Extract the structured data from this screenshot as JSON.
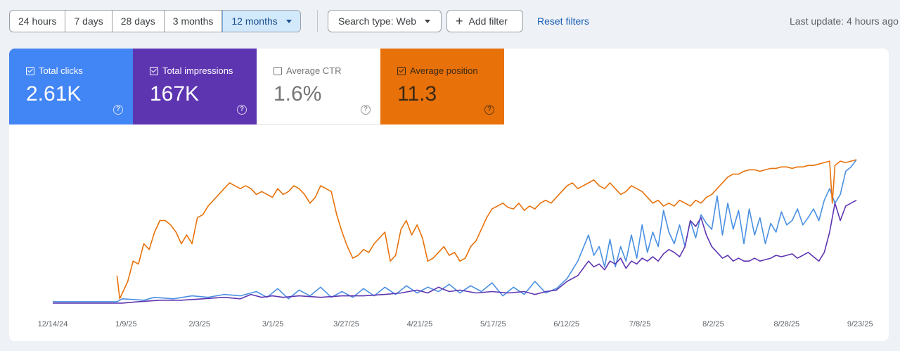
{
  "toolbar": {
    "ranges": [
      "24 hours",
      "7 days",
      "28 days",
      "3 months",
      "12 months"
    ],
    "search_type": "Search type: Web",
    "add_filter": "Add filter",
    "reset": "Reset filters",
    "last_update": "Last update: 4 hours ago"
  },
  "metrics": {
    "clicks": {
      "label": "Total clicks",
      "value": "2.61K"
    },
    "impressions": {
      "label": "Total impressions",
      "value": "167K"
    },
    "ctr": {
      "label": "Average CTR",
      "value": "1.6%"
    },
    "position": {
      "label": "Average position",
      "value": "11.3"
    }
  },
  "colors": {
    "clicks": "#4a90e2",
    "impressions": "#5e35b1",
    "position": "#e8710a"
  },
  "chart_data": {
    "type": "line",
    "x_ticks": [
      "12/14/24",
      "1/9/25",
      "2/3/25",
      "3/1/25",
      "3/27/25",
      "4/21/25",
      "5/17/25",
      "6/12/25",
      "7/8/25",
      "8/2/25",
      "8/28/25",
      "9/23/25"
    ],
    "x_start": "12/14/24",
    "x_end": "10/4/25",
    "grid": false,
    "legend": "none",
    "series": [
      {
        "name": "Total clicks",
        "color": "#4a90e2",
        "points": [
          [
            0,
            0.02
          ],
          [
            24,
            0.02
          ],
          [
            26,
            0.04
          ],
          [
            34,
            0.03
          ],
          [
            38,
            0.05
          ],
          [
            45,
            0.04
          ],
          [
            52,
            0.06
          ],
          [
            58,
            0.05
          ],
          [
            64,
            0.07
          ],
          [
            70,
            0.06
          ],
          [
            76,
            0.09
          ],
          [
            80,
            0.05
          ],
          [
            84,
            0.11
          ],
          [
            88,
            0.04
          ],
          [
            92,
            0.1
          ],
          [
            96,
            0.06
          ],
          [
            100,
            0.12
          ],
          [
            104,
            0.05
          ],
          [
            108,
            0.09
          ],
          [
            112,
            0.05
          ],
          [
            116,
            0.11
          ],
          [
            120,
            0.06
          ],
          [
            124,
            0.12
          ],
          [
            128,
            0.07
          ],
          [
            132,
            0.13
          ],
          [
            136,
            0.08
          ],
          [
            140,
            0.12
          ],
          [
            144,
            0.09
          ],
          [
            148,
            0.14
          ],
          [
            152,
            0.08
          ],
          [
            156,
            0.13
          ],
          [
            160,
            0.09
          ],
          [
            164,
            0.15
          ],
          [
            168,
            0.06
          ],
          [
            172,
            0.12
          ],
          [
            176,
            0.07
          ],
          [
            180,
            0.16
          ],
          [
            184,
            0.08
          ],
          [
            188,
            0.11
          ],
          [
            192,
            0.18
          ],
          [
            196,
            0.3
          ],
          [
            200,
            0.48
          ],
          [
            202,
            0.34
          ],
          [
            204,
            0.4
          ],
          [
            206,
            0.26
          ],
          [
            208,
            0.45
          ],
          [
            210,
            0.26
          ],
          [
            212,
            0.4
          ],
          [
            214,
            0.3
          ],
          [
            216,
            0.48
          ],
          [
            218,
            0.32
          ],
          [
            220,
            0.55
          ],
          [
            222,
            0.36
          ],
          [
            224,
            0.5
          ],
          [
            226,
            0.4
          ],
          [
            228,
            0.65
          ],
          [
            230,
            0.5
          ],
          [
            232,
            0.42
          ],
          [
            234,
            0.55
          ],
          [
            236,
            0.4
          ],
          [
            238,
            0.58
          ],
          [
            240,
            0.46
          ],
          [
            242,
            0.62
          ],
          [
            244,
            0.56
          ],
          [
            246,
            0.52
          ],
          [
            248,
            0.75
          ],
          [
            250,
            0.48
          ],
          [
            252,
            0.7
          ],
          [
            254,
            0.52
          ],
          [
            256,
            0.65
          ],
          [
            258,
            0.42
          ],
          [
            260,
            0.66
          ],
          [
            262,
            0.48
          ],
          [
            264,
            0.6
          ],
          [
            266,
            0.42
          ],
          [
            268,
            0.56
          ],
          [
            270,
            0.5
          ],
          [
            272,
            0.64
          ],
          [
            274,
            0.55
          ],
          [
            276,
            0.58
          ],
          [
            278,
            0.66
          ],
          [
            280,
            0.55
          ],
          [
            282,
            0.6
          ],
          [
            284,
            0.66
          ],
          [
            286,
            0.58
          ],
          [
            288,
            0.72
          ],
          [
            290,
            0.8
          ],
          [
            292,
            0.7
          ],
          [
            294,
            0.76
          ],
          [
            296,
            0.92
          ],
          [
            298,
            0.95
          ],
          [
            300,
            1.0
          ]
        ]
      },
      {
        "name": "Total impressions",
        "color": "#5e35b1",
        "points": [
          [
            0,
            0.01
          ],
          [
            26,
            0.01
          ],
          [
            32,
            0.02
          ],
          [
            40,
            0.03
          ],
          [
            48,
            0.03
          ],
          [
            56,
            0.04
          ],
          [
            64,
            0.05
          ],
          [
            70,
            0.04
          ],
          [
            74,
            0.07
          ],
          [
            78,
            0.05
          ],
          [
            82,
            0.06
          ],
          [
            86,
            0.05
          ],
          [
            92,
            0.06
          ],
          [
            100,
            0.05
          ],
          [
            108,
            0.06
          ],
          [
            116,
            0.06
          ],
          [
            124,
            0.07
          ],
          [
            130,
            0.08
          ],
          [
            136,
            0.1
          ],
          [
            140,
            0.08
          ],
          [
            144,
            0.12
          ],
          [
            148,
            0.09
          ],
          [
            152,
            0.1
          ],
          [
            158,
            0.08
          ],
          [
            164,
            0.09
          ],
          [
            170,
            0.08
          ],
          [
            176,
            0.09
          ],
          [
            180,
            0.07
          ],
          [
            184,
            0.09
          ],
          [
            188,
            0.1
          ],
          [
            192,
            0.16
          ],
          [
            196,
            0.2
          ],
          [
            198,
            0.25
          ],
          [
            200,
            0.3
          ],
          [
            202,
            0.26
          ],
          [
            204,
            0.28
          ],
          [
            206,
            0.24
          ],
          [
            208,
            0.3
          ],
          [
            210,
            0.28
          ],
          [
            212,
            0.32
          ],
          [
            214,
            0.25
          ],
          [
            216,
            0.3
          ],
          [
            218,
            0.28
          ],
          [
            220,
            0.32
          ],
          [
            222,
            0.3
          ],
          [
            224,
            0.33
          ],
          [
            226,
            0.3
          ],
          [
            228,
            0.35
          ],
          [
            230,
            0.38
          ],
          [
            232,
            0.36
          ],
          [
            234,
            0.33
          ],
          [
            236,
            0.4
          ],
          [
            238,
            0.58
          ],
          [
            240,
            0.54
          ],
          [
            242,
            0.6
          ],
          [
            244,
            0.48
          ],
          [
            246,
            0.4
          ],
          [
            248,
            0.36
          ],
          [
            250,
            0.32
          ],
          [
            252,
            0.34
          ],
          [
            254,
            0.3
          ],
          [
            256,
            0.32
          ],
          [
            258,
            0.3
          ],
          [
            260,
            0.3
          ],
          [
            262,
            0.32
          ],
          [
            264,
            0.3
          ],
          [
            266,
            0.31
          ],
          [
            268,
            0.32
          ],
          [
            270,
            0.34
          ],
          [
            272,
            0.33
          ],
          [
            274,
            0.34
          ],
          [
            276,
            0.35
          ],
          [
            278,
            0.32
          ],
          [
            280,
            0.34
          ],
          [
            282,
            0.36
          ],
          [
            284,
            0.33
          ],
          [
            286,
            0.3
          ],
          [
            288,
            0.36
          ],
          [
            290,
            0.5
          ],
          [
            292,
            0.7
          ],
          [
            294,
            0.58
          ],
          [
            296,
            0.68
          ],
          [
            298,
            0.7
          ],
          [
            300,
            0.72
          ]
        ]
      },
      {
        "name": "Average position",
        "color": "#e8710a",
        "points": [
          [
            24,
            0.2
          ],
          [
            25,
            0.04
          ],
          [
            26,
            0.08
          ],
          [
            28,
            0.16
          ],
          [
            30,
            0.3
          ],
          [
            32,
            0.28
          ],
          [
            34,
            0.42
          ],
          [
            36,
            0.38
          ],
          [
            38,
            0.5
          ],
          [
            40,
            0.58
          ],
          [
            42,
            0.58
          ],
          [
            44,
            0.55
          ],
          [
            46,
            0.5
          ],
          [
            48,
            0.42
          ],
          [
            50,
            0.48
          ],
          [
            52,
            0.42
          ],
          [
            54,
            0.6
          ],
          [
            56,
            0.62
          ],
          [
            58,
            0.68
          ],
          [
            60,
            0.72
          ],
          [
            62,
            0.76
          ],
          [
            64,
            0.8
          ],
          [
            66,
            0.84
          ],
          [
            68,
            0.82
          ],
          [
            70,
            0.8
          ],
          [
            72,
            0.82
          ],
          [
            74,
            0.8
          ],
          [
            76,
            0.76
          ],
          [
            78,
            0.78
          ],
          [
            80,
            0.76
          ],
          [
            82,
            0.74
          ],
          [
            84,
            0.8
          ],
          [
            86,
            0.76
          ],
          [
            88,
            0.78
          ],
          [
            90,
            0.82
          ],
          [
            92,
            0.8
          ],
          [
            94,
            0.76
          ],
          [
            96,
            0.7
          ],
          [
            98,
            0.74
          ],
          [
            100,
            0.82
          ],
          [
            102,
            0.8
          ],
          [
            104,
            0.78
          ],
          [
            106,
            0.62
          ],
          [
            108,
            0.5
          ],
          [
            110,
            0.4
          ],
          [
            112,
            0.32
          ],
          [
            114,
            0.34
          ],
          [
            116,
            0.38
          ],
          [
            118,
            0.36
          ],
          [
            120,
            0.42
          ],
          [
            122,
            0.46
          ],
          [
            124,
            0.5
          ],
          [
            126,
            0.3
          ],
          [
            128,
            0.34
          ],
          [
            130,
            0.52
          ],
          [
            132,
            0.58
          ],
          [
            134,
            0.48
          ],
          [
            136,
            0.55
          ],
          [
            138,
            0.46
          ],
          [
            140,
            0.3
          ],
          [
            142,
            0.32
          ],
          [
            144,
            0.36
          ],
          [
            146,
            0.4
          ],
          [
            148,
            0.34
          ],
          [
            150,
            0.36
          ],
          [
            152,
            0.3
          ],
          [
            154,
            0.32
          ],
          [
            156,
            0.4
          ],
          [
            158,
            0.44
          ],
          [
            160,
            0.52
          ],
          [
            162,
            0.6
          ],
          [
            164,
            0.66
          ],
          [
            166,
            0.68
          ],
          [
            168,
            0.7
          ],
          [
            170,
            0.67
          ],
          [
            172,
            0.66
          ],
          [
            174,
            0.7
          ],
          [
            176,
            0.65
          ],
          [
            178,
            0.68
          ],
          [
            180,
            0.66
          ],
          [
            182,
            0.7
          ],
          [
            184,
            0.72
          ],
          [
            186,
            0.7
          ],
          [
            188,
            0.74
          ],
          [
            190,
            0.78
          ],
          [
            192,
            0.82
          ],
          [
            194,
            0.84
          ],
          [
            196,
            0.8
          ],
          [
            198,
            0.82
          ],
          [
            200,
            0.84
          ],
          [
            202,
            0.86
          ],
          [
            204,
            0.82
          ],
          [
            206,
            0.8
          ],
          [
            208,
            0.84
          ],
          [
            210,
            0.8
          ],
          [
            212,
            0.76
          ],
          [
            214,
            0.78
          ],
          [
            216,
            0.82
          ],
          [
            218,
            0.8
          ],
          [
            220,
            0.78
          ],
          [
            222,
            0.74
          ],
          [
            224,
            0.7
          ],
          [
            226,
            0.72
          ],
          [
            228,
            0.68
          ],
          [
            230,
            0.7
          ],
          [
            232,
            0.68
          ],
          [
            234,
            0.72
          ],
          [
            236,
            0.7
          ],
          [
            238,
            0.68
          ],
          [
            240,
            0.72
          ],
          [
            242,
            0.7
          ],
          [
            244,
            0.74
          ],
          [
            246,
            0.76
          ],
          [
            248,
            0.8
          ],
          [
            250,
            0.84
          ],
          [
            252,
            0.88
          ],
          [
            254,
            0.9
          ],
          [
            256,
            0.9
          ],
          [
            258,
            0.92
          ],
          [
            260,
            0.93
          ],
          [
            262,
            0.93
          ],
          [
            264,
            0.92
          ],
          [
            266,
            0.93
          ],
          [
            268,
            0.94
          ],
          [
            270,
            0.94
          ],
          [
            272,
            0.95
          ],
          [
            274,
            0.95
          ],
          [
            276,
            0.94
          ],
          [
            278,
            0.95
          ],
          [
            280,
            0.95
          ],
          [
            282,
            0.96
          ],
          [
            284,
            0.96
          ],
          [
            286,
            0.97
          ],
          [
            288,
            0.98
          ],
          [
            290,
            0.99
          ],
          [
            291,
            0.7
          ],
          [
            292,
            0.96
          ],
          [
            294,
            0.99
          ],
          [
            296,
            0.98
          ],
          [
            298,
            0.99
          ],
          [
            300,
            1.0
          ]
        ]
      }
    ]
  }
}
